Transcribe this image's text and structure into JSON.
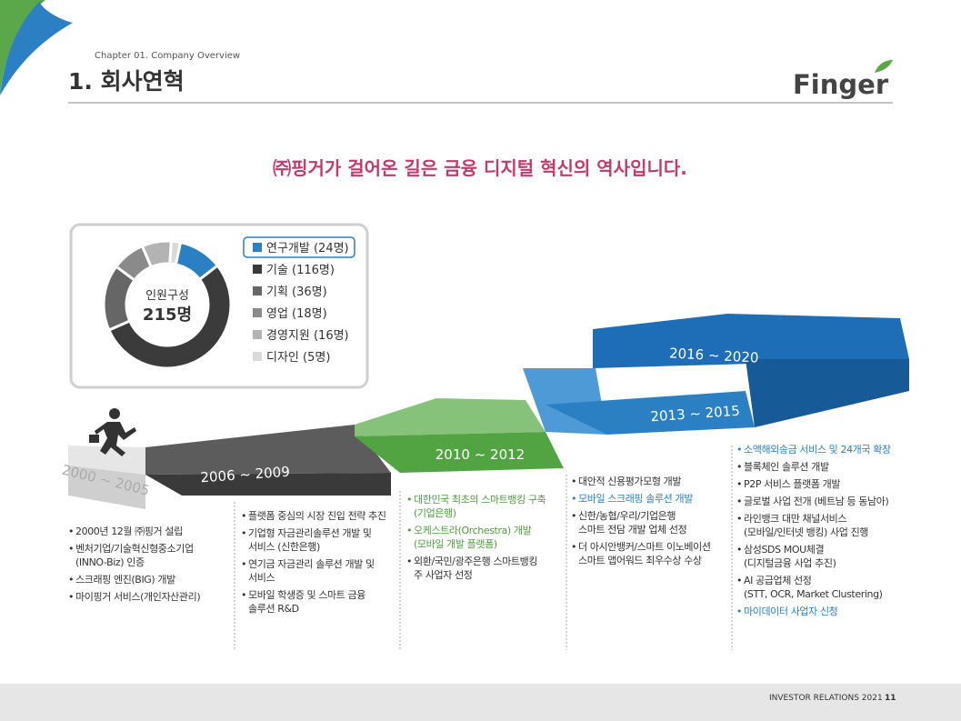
{
  "header": {
    "chapter": "Chapter 01. Company Overview",
    "title": "1. 회사연혁",
    "logo": "Finger"
  },
  "headline": "㈜핑거가 걸어온 길은 금융 디지털 혁신의 역사입니다.",
  "chart_data": {
    "type": "pie",
    "donut": true,
    "center_label": "인원구성",
    "center_total": "215명",
    "categories": [
      "연구개발 (24명)",
      "기술 (116명)",
      "기획 (36명)",
      "영업 (18명)",
      "경영지원 (16명)",
      "디자인 (5명)"
    ],
    "values": [
      24,
      116,
      36,
      18,
      16,
      5
    ],
    "colors": [
      "#2a80c2",
      "#3b3b3b",
      "#666666",
      "#8a8a8a",
      "#b3b3b3",
      "#d9d9d9"
    ]
  },
  "timeline": [
    {
      "period": "2000 ~ 2005",
      "items": [
        {
          "text": "2000년 12월 ㈜핑거 설립"
        },
        {
          "text": "벤처기업/기술혁신형중소기업\n(INNO-Biz) 인증"
        },
        {
          "text": "스크래핑 엔진(BIG) 개발"
        },
        {
          "text": "마이핑거 서비스(개인자산관리)"
        }
      ]
    },
    {
      "period": "2006 ~ 2009",
      "items": [
        {
          "text": "플랫폼 중심의 시장 진입 전략 추진"
        },
        {
          "text": "기업형 자금관리솔루션 개발 및\n서비스 (신한은행)"
        },
        {
          "text": "연기금 자금관리 솔루션 개발 및\n서비스"
        },
        {
          "text": "모바일 학생증 및 스마트 금융\n솔루션 R&D"
        }
      ]
    },
    {
      "period": "2010 ~ 2012",
      "items": [
        {
          "text": "대한민국 최초의 스마트뱅킹 구축\n(기업은행)",
          "color": "#4f9e3f"
        },
        {
          "text": "오케스트라(Orchestra) 개발\n(모바일 개발 플랫폼)",
          "color": "#4f9e3f"
        },
        {
          "text": "외환/국민/광주은행 스마트뱅킹\n주 사업자 선정"
        }
      ]
    },
    {
      "period": "2013 ~ 2015",
      "items": [
        {
          "text": "대안적 신용평가모형 개발"
        },
        {
          "text": "모바일 스크래핑 솔루션 개발",
          "color": "#2a80c2"
        },
        {
          "text": "신한/농협/우리/기업은행\n스마트 전담 개발 업체 선정"
        },
        {
          "text": "더 아시안뱅커/스마트 이노베이션\n스마트 앱어워드 최우수상 수상"
        }
      ]
    },
    {
      "period": "2016 ~ 2020",
      "items": [
        {
          "text": "소액해외송금 서비스 및 24개국 확장",
          "color": "#2a80c2"
        },
        {
          "text": "블록체인 솔루션 개발"
        },
        {
          "text": "P2P 서비스 플랫폼 개발"
        },
        {
          "text": "글로벌 사업 전개 (베트남 등 동남아)"
        },
        {
          "text": "라인뱅크 대만 채널서비스\n(모바일/인터넷 뱅킹) 사업 진행"
        },
        {
          "text": "삼성SDS MOU체결\n(디지털금융 사업 추진)"
        },
        {
          "text": "AI 공급업체 선정\n(STT, OCR, Market Clustering)"
        },
        {
          "text": "마이데이터 사업자 신청",
          "color": "#2a80c2"
        }
      ]
    }
  ],
  "footer": {
    "text": "INVESTOR RELATIONS 2021",
    "page": "11"
  }
}
